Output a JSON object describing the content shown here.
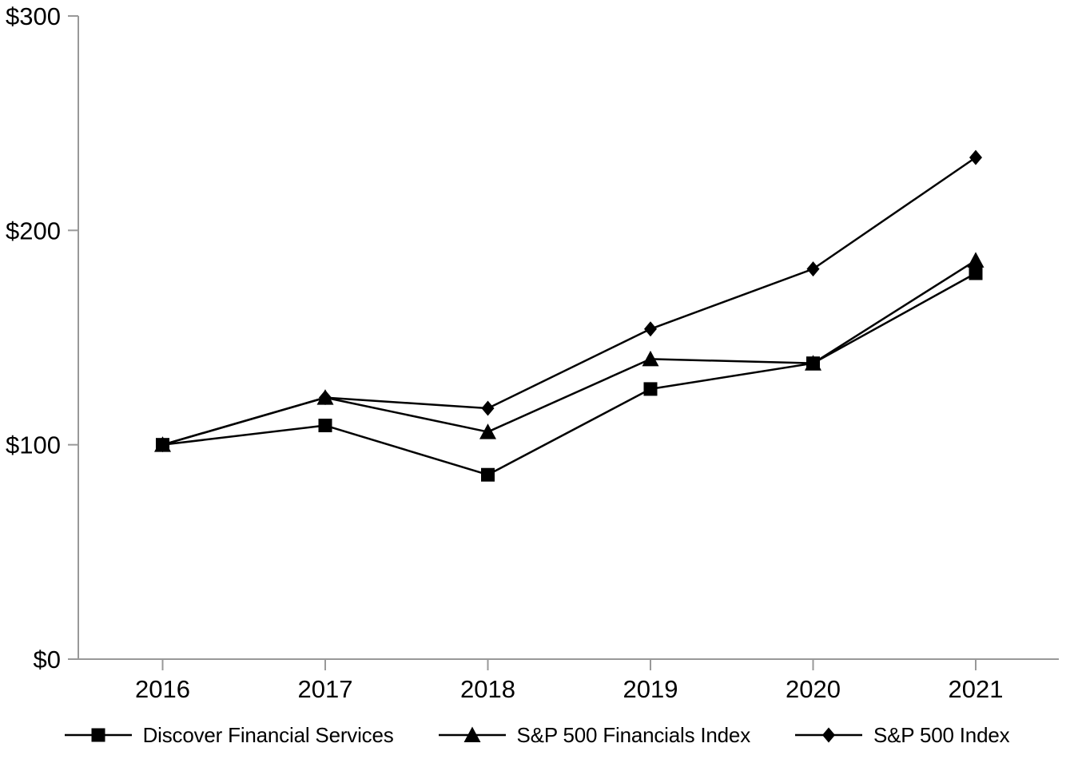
{
  "chart_data": {
    "type": "line",
    "title": "",
    "categories": [
      "2016",
      "2017",
      "2018",
      "2019",
      "2020",
      "2021"
    ],
    "series": [
      {
        "name": "Discover Financial Services",
        "marker": "square-marker-icon",
        "values": [
          100,
          109,
          86,
          126,
          138,
          180
        ]
      },
      {
        "name": "S&P 500 Financials Index",
        "marker": "triangle-marker-icon",
        "values": [
          100,
          122,
          106,
          140,
          138,
          186
        ]
      },
      {
        "name": "S&P 500 Index",
        "marker": "diamond-marker-icon",
        "values": [
          100,
          122,
          117,
          154,
          182,
          234
        ]
      }
    ],
    "ylim": [
      0,
      300
    ],
    "yticks": [
      {
        "value": 300,
        "label": "$300"
      },
      {
        "value": 200,
        "label": "$200"
      },
      {
        "value": 100,
        "label": "$100"
      },
      {
        "value": 0,
        "label": "$0"
      }
    ],
    "grid": false,
    "legend_position": "bottom",
    "colors": {
      "series_line": "#000000",
      "marker": "#000000",
      "axis": "#999999",
      "tick_text": "#000000",
      "background": "#ffffff"
    }
  }
}
